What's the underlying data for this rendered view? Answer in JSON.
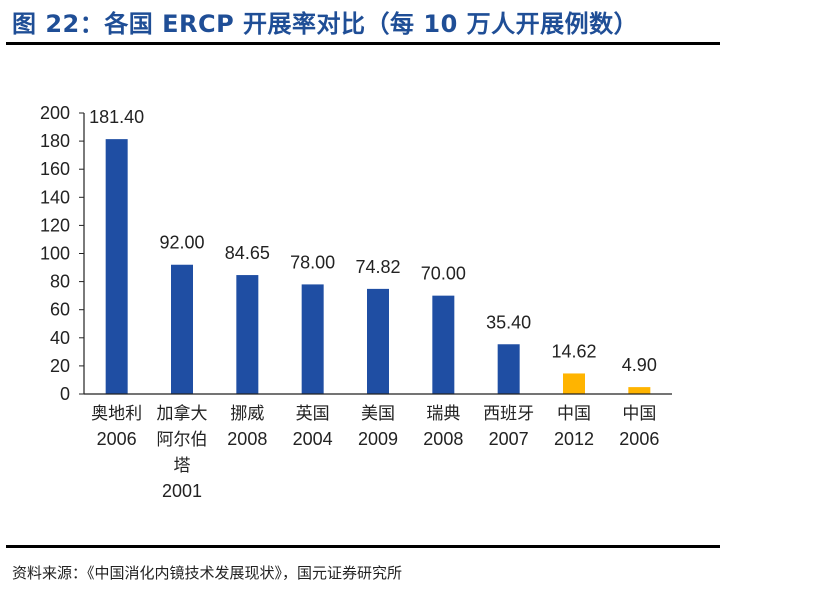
{
  "header": {
    "title": "图 22：各国 ERCP 开展率对比（每 10 万人开展例数）"
  },
  "footer": {
    "source": "资料来源：《中国消化内镜技术发展现状》，国元证券研究所"
  },
  "chart_data": {
    "type": "bar",
    "title": "图 22：各国 ERCP 开展率对比（每 10 万人开展例数）",
    "xlabel": "",
    "ylabel": "",
    "ylim": [
      0,
      200
    ],
    "yticks": [
      "0",
      "20",
      "40",
      "60",
      "80",
      "100",
      "120",
      "140",
      "160",
      "180",
      "200"
    ],
    "grid": false,
    "categories": [
      [
        "奥地利",
        "2006"
      ],
      [
        "加拿大",
        "阿尔伯",
        "塔",
        "2001"
      ],
      [
        "挪威",
        "2008"
      ],
      [
        "英国",
        "2004"
      ],
      [
        "美国",
        "2009"
      ],
      [
        "瑞典",
        "2008"
      ],
      [
        "西班牙",
        "2007"
      ],
      [
        "中国",
        "2012"
      ],
      [
        "中国",
        "2006"
      ]
    ],
    "values": [
      181.4,
      92.0,
      84.65,
      78.0,
      74.82,
      70.0,
      35.4,
      14.62,
      4.9
    ],
    "value_labels": [
      "181.40",
      "92.00",
      "84.65",
      "78.00",
      "74.82",
      "70.00",
      "35.40",
      "14.62",
      "4.90"
    ],
    "bar_colors": [
      "#1f4ea3",
      "#1f4ea3",
      "#1f4ea3",
      "#1f4ea3",
      "#1f4ea3",
      "#1f4ea3",
      "#1f4ea3",
      "#ffb400",
      "#ffb400"
    ],
    "axis_color": "#222222"
  }
}
